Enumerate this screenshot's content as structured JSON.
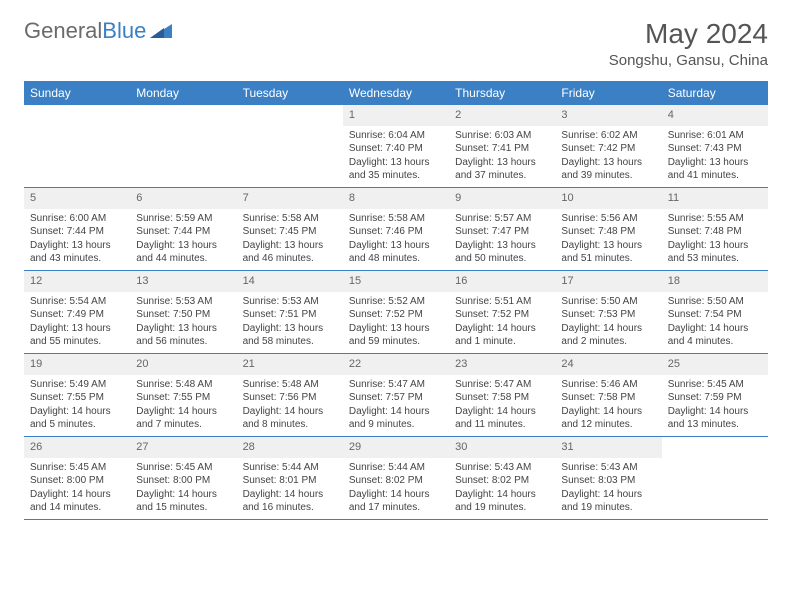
{
  "brand": {
    "part1": "General",
    "part2": "Blue"
  },
  "title": "May 2024",
  "location": "Songshu, Gansu, China",
  "weekdays": [
    "Sunday",
    "Monday",
    "Tuesday",
    "Wednesday",
    "Thursday",
    "Friday",
    "Saturday"
  ],
  "colors": {
    "header_bg": "#3b7fc4",
    "header_text": "#ffffff",
    "daynum_bg": "#f0f0f0",
    "border": "#3b7fc4"
  },
  "weeks": [
    [
      {
        "n": "",
        "sr": "",
        "ss": "",
        "dl1": "",
        "dl2": ""
      },
      {
        "n": "",
        "sr": "",
        "ss": "",
        "dl1": "",
        "dl2": ""
      },
      {
        "n": "",
        "sr": "",
        "ss": "",
        "dl1": "",
        "dl2": ""
      },
      {
        "n": "1",
        "sr": "Sunrise: 6:04 AM",
        "ss": "Sunset: 7:40 PM",
        "dl1": "Daylight: 13 hours",
        "dl2": "and 35 minutes."
      },
      {
        "n": "2",
        "sr": "Sunrise: 6:03 AM",
        "ss": "Sunset: 7:41 PM",
        "dl1": "Daylight: 13 hours",
        "dl2": "and 37 minutes."
      },
      {
        "n": "3",
        "sr": "Sunrise: 6:02 AM",
        "ss": "Sunset: 7:42 PM",
        "dl1": "Daylight: 13 hours",
        "dl2": "and 39 minutes."
      },
      {
        "n": "4",
        "sr": "Sunrise: 6:01 AM",
        "ss": "Sunset: 7:43 PM",
        "dl1": "Daylight: 13 hours",
        "dl2": "and 41 minutes."
      }
    ],
    [
      {
        "n": "5",
        "sr": "Sunrise: 6:00 AM",
        "ss": "Sunset: 7:44 PM",
        "dl1": "Daylight: 13 hours",
        "dl2": "and 43 minutes."
      },
      {
        "n": "6",
        "sr": "Sunrise: 5:59 AM",
        "ss": "Sunset: 7:44 PM",
        "dl1": "Daylight: 13 hours",
        "dl2": "and 44 minutes."
      },
      {
        "n": "7",
        "sr": "Sunrise: 5:58 AM",
        "ss": "Sunset: 7:45 PM",
        "dl1": "Daylight: 13 hours",
        "dl2": "and 46 minutes."
      },
      {
        "n": "8",
        "sr": "Sunrise: 5:58 AM",
        "ss": "Sunset: 7:46 PM",
        "dl1": "Daylight: 13 hours",
        "dl2": "and 48 minutes."
      },
      {
        "n": "9",
        "sr": "Sunrise: 5:57 AM",
        "ss": "Sunset: 7:47 PM",
        "dl1": "Daylight: 13 hours",
        "dl2": "and 50 minutes."
      },
      {
        "n": "10",
        "sr": "Sunrise: 5:56 AM",
        "ss": "Sunset: 7:48 PM",
        "dl1": "Daylight: 13 hours",
        "dl2": "and 51 minutes."
      },
      {
        "n": "11",
        "sr": "Sunrise: 5:55 AM",
        "ss": "Sunset: 7:48 PM",
        "dl1": "Daylight: 13 hours",
        "dl2": "and 53 minutes."
      }
    ],
    [
      {
        "n": "12",
        "sr": "Sunrise: 5:54 AM",
        "ss": "Sunset: 7:49 PM",
        "dl1": "Daylight: 13 hours",
        "dl2": "and 55 minutes."
      },
      {
        "n": "13",
        "sr": "Sunrise: 5:53 AM",
        "ss": "Sunset: 7:50 PM",
        "dl1": "Daylight: 13 hours",
        "dl2": "and 56 minutes."
      },
      {
        "n": "14",
        "sr": "Sunrise: 5:53 AM",
        "ss": "Sunset: 7:51 PM",
        "dl1": "Daylight: 13 hours",
        "dl2": "and 58 minutes."
      },
      {
        "n": "15",
        "sr": "Sunrise: 5:52 AM",
        "ss": "Sunset: 7:52 PM",
        "dl1": "Daylight: 13 hours",
        "dl2": "and 59 minutes."
      },
      {
        "n": "16",
        "sr": "Sunrise: 5:51 AM",
        "ss": "Sunset: 7:52 PM",
        "dl1": "Daylight: 14 hours",
        "dl2": "and 1 minute."
      },
      {
        "n": "17",
        "sr": "Sunrise: 5:50 AM",
        "ss": "Sunset: 7:53 PM",
        "dl1": "Daylight: 14 hours",
        "dl2": "and 2 minutes."
      },
      {
        "n": "18",
        "sr": "Sunrise: 5:50 AM",
        "ss": "Sunset: 7:54 PM",
        "dl1": "Daylight: 14 hours",
        "dl2": "and 4 minutes."
      }
    ],
    [
      {
        "n": "19",
        "sr": "Sunrise: 5:49 AM",
        "ss": "Sunset: 7:55 PM",
        "dl1": "Daylight: 14 hours",
        "dl2": "and 5 minutes."
      },
      {
        "n": "20",
        "sr": "Sunrise: 5:48 AM",
        "ss": "Sunset: 7:55 PM",
        "dl1": "Daylight: 14 hours",
        "dl2": "and 7 minutes."
      },
      {
        "n": "21",
        "sr": "Sunrise: 5:48 AM",
        "ss": "Sunset: 7:56 PM",
        "dl1": "Daylight: 14 hours",
        "dl2": "and 8 minutes."
      },
      {
        "n": "22",
        "sr": "Sunrise: 5:47 AM",
        "ss": "Sunset: 7:57 PM",
        "dl1": "Daylight: 14 hours",
        "dl2": "and 9 minutes."
      },
      {
        "n": "23",
        "sr": "Sunrise: 5:47 AM",
        "ss": "Sunset: 7:58 PM",
        "dl1": "Daylight: 14 hours",
        "dl2": "and 11 minutes."
      },
      {
        "n": "24",
        "sr": "Sunrise: 5:46 AM",
        "ss": "Sunset: 7:58 PM",
        "dl1": "Daylight: 14 hours",
        "dl2": "and 12 minutes."
      },
      {
        "n": "25",
        "sr": "Sunrise: 5:45 AM",
        "ss": "Sunset: 7:59 PM",
        "dl1": "Daylight: 14 hours",
        "dl2": "and 13 minutes."
      }
    ],
    [
      {
        "n": "26",
        "sr": "Sunrise: 5:45 AM",
        "ss": "Sunset: 8:00 PM",
        "dl1": "Daylight: 14 hours",
        "dl2": "and 14 minutes."
      },
      {
        "n": "27",
        "sr": "Sunrise: 5:45 AM",
        "ss": "Sunset: 8:00 PM",
        "dl1": "Daylight: 14 hours",
        "dl2": "and 15 minutes."
      },
      {
        "n": "28",
        "sr": "Sunrise: 5:44 AM",
        "ss": "Sunset: 8:01 PM",
        "dl1": "Daylight: 14 hours",
        "dl2": "and 16 minutes."
      },
      {
        "n": "29",
        "sr": "Sunrise: 5:44 AM",
        "ss": "Sunset: 8:02 PM",
        "dl1": "Daylight: 14 hours",
        "dl2": "and 17 minutes."
      },
      {
        "n": "30",
        "sr": "Sunrise: 5:43 AM",
        "ss": "Sunset: 8:02 PM",
        "dl1": "Daylight: 14 hours",
        "dl2": "and 19 minutes."
      },
      {
        "n": "31",
        "sr": "Sunrise: 5:43 AM",
        "ss": "Sunset: 8:03 PM",
        "dl1": "Daylight: 14 hours",
        "dl2": "and 19 minutes."
      },
      {
        "n": "",
        "sr": "",
        "ss": "",
        "dl1": "",
        "dl2": ""
      }
    ]
  ]
}
